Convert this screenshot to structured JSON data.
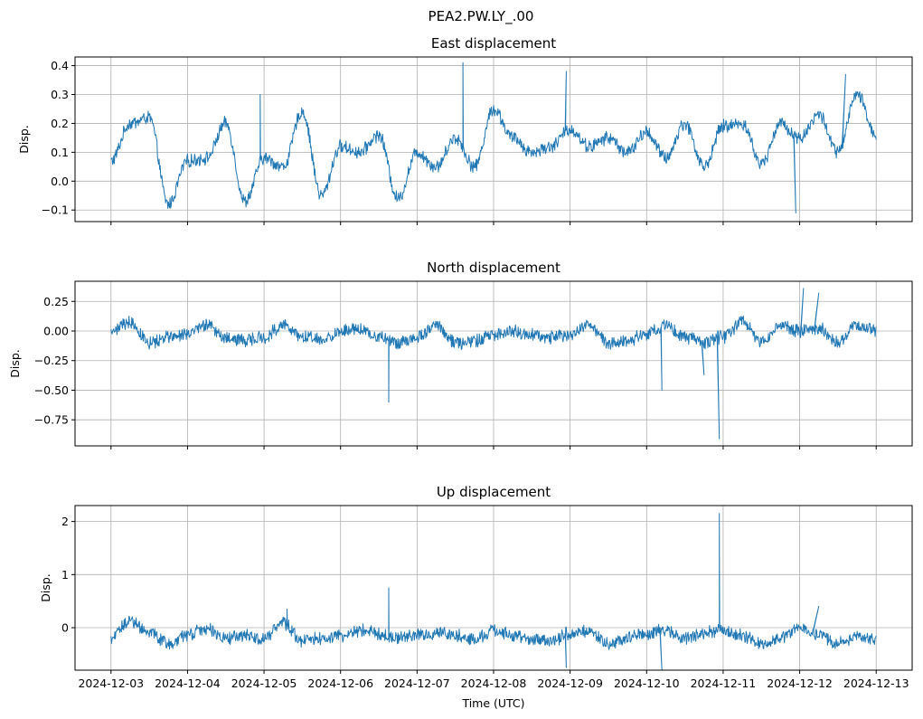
{
  "figure": {
    "suptitle": "PEA2.PW.LY_.00",
    "xlabel": "Time (UTC)"
  },
  "chart_data": [
    {
      "type": "line",
      "title": "East displacement",
      "xlabel": "",
      "ylabel": "Disp.",
      "x_ticks": [
        "2024-12-03",
        "2024-12-04",
        "2024-12-05",
        "2024-12-06",
        "2024-12-07",
        "2024-12-08",
        "2024-12-09",
        "2024-12-10",
        "2024-12-11",
        "2024-12-12",
        "2024-12-13"
      ],
      "y_ticks": [
        "−0.1",
        "0.0",
        "0.1",
        "0.2",
        "0.3",
        "0.4"
      ],
      "y_tick_values": [
        -0.1,
        0.0,
        0.1,
        0.2,
        0.3,
        0.4
      ],
      "ylim": [
        -0.14,
        0.43
      ],
      "xlim_days": [
        -0.47,
        10.47
      ],
      "grid": true,
      "color": "#1f77b4",
      "series": [
        {
          "x_days": [
            0,
            0.25,
            0.5,
            0.75,
            1.0,
            1.25,
            1.5,
            1.75,
            2.0,
            2.25,
            2.5,
            2.75,
            3.0,
            3.25,
            3.5,
            3.75,
            4.0,
            4.25,
            4.5,
            4.75,
            5.0,
            5.25,
            5.5,
            5.75,
            6.0,
            6.25,
            6.5,
            6.75,
            7.0,
            7.25,
            7.5,
            7.75,
            8.0,
            8.25,
            8.5,
            8.75,
            9.0,
            9.25,
            9.5,
            9.75,
            10.0
          ],
          "values": [
            0.07,
            0.2,
            0.22,
            -0.08,
            0.07,
            0.08,
            0.2,
            -0.07,
            0.08,
            0.05,
            0.24,
            -0.05,
            0.12,
            0.1,
            0.16,
            -0.06,
            0.1,
            0.05,
            0.15,
            0.05,
            0.25,
            0.15,
            0.1,
            0.12,
            0.18,
            0.12,
            0.15,
            0.1,
            0.17,
            0.08,
            0.2,
            0.05,
            0.19,
            0.2,
            0.06,
            0.2,
            0.15,
            0.23,
            0.1,
            0.3,
            0.16
          ],
          "spikes": [
            {
              "x": 4.6,
              "y": 0.41
            },
            {
              "x": 5.95,
              "y": 0.38
            },
            {
              "x": 8.95,
              "y": -0.11
            },
            {
              "x": 9.6,
              "y": 0.37
            },
            {
              "x": 1.95,
              "y": 0.3
            }
          ]
        }
      ]
    },
    {
      "type": "line",
      "title": "North displacement",
      "xlabel": "",
      "ylabel": "Disp.",
      "x_ticks": [
        "2024-12-03",
        "2024-12-04",
        "2024-12-05",
        "2024-12-06",
        "2024-12-07",
        "2024-12-08",
        "2024-12-09",
        "2024-12-10",
        "2024-12-11",
        "2024-12-12",
        "2024-12-13"
      ],
      "y_ticks": [
        "−0.75",
        "−0.50",
        "−0.25",
        "0.00",
        "0.25"
      ],
      "y_tick_values": [
        -0.75,
        -0.5,
        -0.25,
        0.0,
        0.25
      ],
      "ylim": [
        -0.97,
        0.42
      ],
      "xlim_days": [
        -0.47,
        10.47
      ],
      "grid": true,
      "color": "#1f77b4",
      "series": [
        {
          "x_days": [
            0,
            0.25,
            0.5,
            0.75,
            1.0,
            1.25,
            1.5,
            1.75,
            2.0,
            2.25,
            2.5,
            2.75,
            3.0,
            3.25,
            3.5,
            3.75,
            4.0,
            4.25,
            4.5,
            4.75,
            5.0,
            5.25,
            5.5,
            5.75,
            6.0,
            6.25,
            6.5,
            6.75,
            7.0,
            7.25,
            7.5,
            7.75,
            8.0,
            8.25,
            8.5,
            8.75,
            9.0,
            9.25,
            9.5,
            9.75,
            10.0
          ],
          "values": [
            0.0,
            0.08,
            -0.1,
            -0.05,
            -0.03,
            0.05,
            -0.05,
            -0.08,
            -0.05,
            0.05,
            -0.05,
            -0.08,
            0.0,
            0.02,
            -0.05,
            -0.1,
            -0.05,
            0.05,
            -0.1,
            -0.08,
            -0.03,
            0.0,
            -0.03,
            -0.05,
            -0.03,
            0.05,
            -0.1,
            -0.08,
            -0.02,
            0.05,
            -0.05,
            -0.1,
            -0.05,
            0.08,
            -0.1,
            0.05,
            0.0,
            0.02,
            -0.1,
            0.05,
            0.0
          ],
          "spikes": [
            {
              "x": 3.63,
              "y": -0.6
            },
            {
              "x": 7.2,
              "y": -0.5
            },
            {
              "x": 7.95,
              "y": -0.91
            },
            {
              "x": 9.05,
              "y": 0.36
            },
            {
              "x": 9.25,
              "y": 0.32
            },
            {
              "x": 7.75,
              "y": -0.37
            }
          ]
        }
      ]
    },
    {
      "type": "line",
      "title": "Up displacement",
      "xlabel": "Time (UTC)",
      "ylabel": "Disp.",
      "x_ticks": [
        "2024-12-03",
        "2024-12-04",
        "2024-12-05",
        "2024-12-06",
        "2024-12-07",
        "2024-12-08",
        "2024-12-09",
        "2024-12-10",
        "2024-12-11",
        "2024-12-12",
        "2024-12-13"
      ],
      "y_ticks": [
        "0",
        "1",
        "2"
      ],
      "y_tick_values": [
        0,
        1,
        2
      ],
      "ylim": [
        -0.8,
        2.3
      ],
      "xlim_days": [
        -0.47,
        10.47
      ],
      "grid": true,
      "color": "#1f77b4",
      "series": [
        {
          "x_days": [
            0,
            0.25,
            0.5,
            0.75,
            1.0,
            1.25,
            1.5,
            1.75,
            2.0,
            2.25,
            2.5,
            2.75,
            3.0,
            3.25,
            3.5,
            3.75,
            4.0,
            4.25,
            4.5,
            4.75,
            5.0,
            5.25,
            5.5,
            5.75,
            6.0,
            6.25,
            6.5,
            6.75,
            7.0,
            7.25,
            7.5,
            7.75,
            8.0,
            8.25,
            8.5,
            8.75,
            9.0,
            9.25,
            9.5,
            9.75,
            10.0
          ],
          "values": [
            -0.2,
            0.15,
            -0.1,
            -0.3,
            -0.15,
            0.0,
            -0.2,
            -0.15,
            -0.2,
            0.1,
            -0.25,
            -0.2,
            -0.15,
            -0.05,
            -0.1,
            -0.2,
            -0.15,
            -0.1,
            -0.15,
            -0.2,
            -0.05,
            -0.15,
            -0.2,
            -0.25,
            -0.1,
            -0.05,
            -0.3,
            -0.2,
            -0.1,
            -0.05,
            -0.2,
            -0.1,
            -0.05,
            -0.15,
            -0.3,
            -0.2,
            0.0,
            -0.15,
            -0.3,
            -0.15,
            -0.25
          ],
          "spikes": [
            {
              "x": 7.95,
              "y": 2.15
            },
            {
              "x": 3.63,
              "y": 0.75
            },
            {
              "x": 5.95,
              "y": -0.75
            },
            {
              "x": 7.2,
              "y": -0.8
            },
            {
              "x": 2.3,
              "y": 0.35
            },
            {
              "x": 9.25,
              "y": 0.4
            }
          ]
        }
      ]
    }
  ]
}
